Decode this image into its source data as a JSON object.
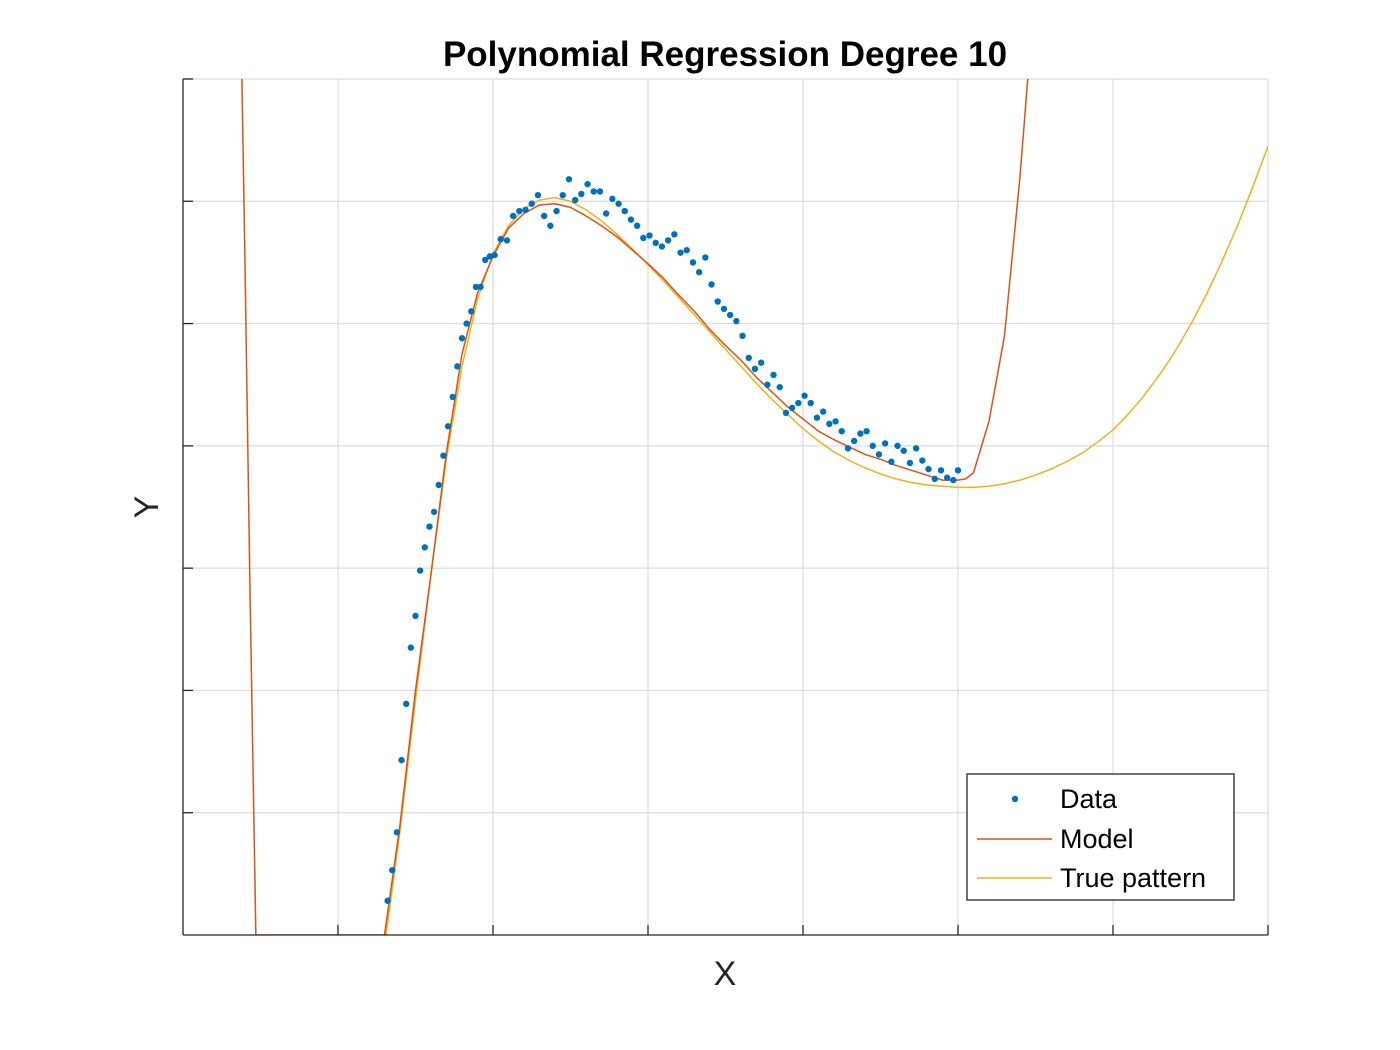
{
  "chart_data": {
    "type": "line",
    "title": "Polynomial Regression Degree 10",
    "xlabel": "X",
    "ylabel": "Y",
    "xlim": [
      0,
      7
    ],
    "ylim": [
      0,
      7
    ],
    "grid": true,
    "tick_labels_visible": false,
    "legend_placement": "bottom-right",
    "colors": {
      "data": "#0072BD",
      "model": "#D95319",
      "true_pattern": "#EDB120"
    },
    "series": [
      {
        "name": "Data",
        "kind": "scatter",
        "x": [
          1.32,
          1.35,
          1.38,
          1.41,
          1.44,
          1.47,
          1.5,
          1.53,
          1.56,
          1.59,
          1.62,
          1.65,
          1.68,
          1.71,
          1.74,
          1.77,
          1.8,
          1.83,
          1.86,
          1.89,
          1.92,
          1.95,
          1.98,
          2.01,
          2.05,
          2.09,
          2.13,
          2.17,
          2.21,
          2.25,
          2.29,
          2.33,
          2.37,
          2.41,
          2.45,
          2.49,
          2.53,
          2.57,
          2.61,
          2.65,
          2.69,
          2.73,
          2.77,
          2.81,
          2.85,
          2.89,
          2.93,
          2.97,
          3.01,
          3.05,
          3.09,
          3.13,
          3.17,
          3.21,
          3.25,
          3.29,
          3.33,
          3.37,
          3.41,
          3.45,
          3.49,
          3.53,
          3.57,
          3.61,
          3.65,
          3.69,
          3.73,
          3.77,
          3.81,
          3.85,
          3.89,
          3.93,
          3.97,
          4.01,
          4.05,
          4.09,
          4.13,
          4.17,
          4.21,
          4.25,
          4.29,
          4.33,
          4.37,
          4.41,
          4.45,
          4.49,
          4.53,
          4.57,
          4.61,
          4.65,
          4.69,
          4.73,
          4.77,
          4.81,
          4.85,
          4.89,
          4.93,
          4.97,
          5.0
        ],
        "y": [
          0.28,
          0.53,
          0.84,
          1.43,
          1.89,
          2.35,
          2.61,
          2.98,
          3.17,
          3.34,
          3.46,
          3.68,
          3.92,
          4.16,
          4.4,
          4.65,
          4.88,
          5.0,
          5.1,
          5.3,
          5.3,
          5.52,
          5.55,
          5.56,
          5.69,
          5.68,
          5.88,
          5.92,
          5.93,
          5.98,
          6.05,
          5.88,
          5.8,
          5.92,
          6.05,
          6.18,
          6.01,
          6.06,
          6.14,
          6.08,
          6.08,
          5.9,
          6.02,
          5.98,
          5.92,
          5.85,
          5.8,
          5.7,
          5.72,
          5.66,
          5.63,
          5.68,
          5.73,
          5.58,
          5.6,
          5.5,
          5.42,
          5.54,
          5.32,
          5.18,
          5.12,
          5.07,
          5.02,
          4.9,
          4.72,
          4.63,
          4.68,
          4.5,
          4.58,
          4.48,
          4.27,
          4.31,
          4.35,
          4.41,
          4.35,
          4.23,
          4.28,
          4.18,
          4.2,
          4.12,
          3.98,
          4.04,
          4.1,
          4.12,
          4.0,
          3.93,
          4.02,
          3.87,
          4.0,
          3.96,
          3.86,
          3.98,
          3.88,
          3.81,
          3.73,
          3.8,
          3.74,
          3.72,
          3.8
        ]
      },
      {
        "name": "Model",
        "kind": "line",
        "x": [
          0.38,
          0.4,
          0.43,
          0.47,
          1.3,
          1.4,
          1.5,
          1.6,
          1.7,
          1.8,
          1.9,
          2.0,
          2.1,
          2.2,
          2.3,
          2.4,
          2.5,
          2.6,
          2.7,
          2.8,
          2.9,
          3.0,
          3.1,
          3.2,
          3.3,
          3.4,
          3.5,
          3.6,
          3.7,
          3.8,
          3.9,
          4.0,
          4.1,
          4.2,
          4.3,
          4.4,
          4.5,
          4.6,
          4.7,
          4.8,
          4.9,
          5.0,
          5.05,
          5.1,
          5.2,
          5.3,
          5.4,
          5.45
        ],
        "y": [
          7.0,
          5.5,
          3.0,
          0.0,
          0.0,
          0.9,
          2.0,
          2.95,
          3.95,
          4.75,
          5.25,
          5.55,
          5.78,
          5.9,
          5.97,
          5.98,
          5.95,
          5.88,
          5.8,
          5.71,
          5.6,
          5.49,
          5.37,
          5.23,
          5.1,
          4.95,
          4.82,
          4.7,
          4.56,
          4.44,
          4.32,
          4.22,
          4.12,
          4.05,
          3.99,
          3.93,
          3.89,
          3.84,
          3.8,
          3.76,
          3.72,
          3.72,
          3.73,
          3.78,
          4.2,
          4.9,
          6.2,
          7.0
        ]
      },
      {
        "name": "True pattern",
        "kind": "line",
        "x": [
          1.31,
          1.4,
          1.5,
          1.6,
          1.7,
          1.8,
          1.9,
          2.0,
          2.1,
          2.2,
          2.3,
          2.4,
          2.5,
          2.6,
          2.7,
          2.8,
          2.9,
          3.0,
          3.1,
          3.2,
          3.3,
          3.4,
          3.5,
          3.6,
          3.7,
          3.8,
          3.9,
          4.0,
          4.1,
          4.2,
          4.3,
          4.4,
          4.5,
          4.6,
          4.7,
          4.8,
          4.9,
          5.0,
          5.1,
          5.2,
          5.3,
          5.4,
          5.5,
          5.6,
          5.7,
          5.8,
          5.9,
          6.0,
          6.1,
          6.2,
          6.3,
          6.4,
          6.5,
          6.6,
          6.7,
          6.8,
          6.9,
          7.0
        ],
        "y": [
          0.0,
          0.85,
          1.92,
          2.95,
          3.9,
          4.65,
          5.2,
          5.57,
          5.8,
          5.94,
          6.01,
          6.03,
          6.0,
          5.93,
          5.84,
          5.73,
          5.61,
          5.48,
          5.35,
          5.21,
          5.07,
          4.93,
          4.79,
          4.65,
          4.51,
          4.38,
          4.26,
          4.14,
          4.04,
          3.95,
          3.88,
          3.82,
          3.77,
          3.73,
          3.7,
          3.68,
          3.67,
          3.66,
          3.66,
          3.67,
          3.69,
          3.72,
          3.76,
          3.81,
          3.87,
          3.94,
          4.03,
          4.13,
          4.26,
          4.41,
          4.58,
          4.77,
          4.99,
          5.23,
          5.5,
          5.79,
          6.11,
          6.45
        ]
      }
    ]
  }
}
